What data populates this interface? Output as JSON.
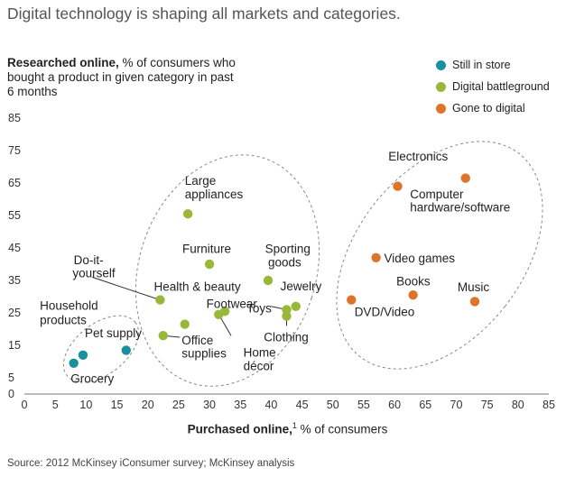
{
  "headline": "Digital technology is shaping all markets and categories.",
  "chart_data": {
    "type": "scatter",
    "title": "Digital technology is shaping all markets and categories.",
    "ylabel_bold": "Researched online,",
    "ylabel_rest": " % of consumers who bought a product in given category in past 6 months",
    "xlabel_bold": "Purchased online,",
    "xlabel_sup": "1",
    "xlabel_rest": " % of consumers",
    "xlim": [
      0,
      85
    ],
    "ylim": [
      0,
      85
    ],
    "xticks": [
      0,
      5,
      10,
      15,
      20,
      25,
      30,
      35,
      40,
      45,
      50,
      55,
      60,
      65,
      70,
      75,
      80,
      85
    ],
    "yticks": [
      0,
      5,
      15,
      25,
      35,
      45,
      55,
      65,
      75,
      85
    ],
    "colors": {
      "Still in store": "#1a8fa0",
      "Digital battleground": "#99b83a",
      "Gone to digital": "#e0732a"
    },
    "series": [
      {
        "name": "Still in store",
        "points": [
          {
            "label": "Household products",
            "x": 9.5,
            "y": 12
          },
          {
            "label": "Grocery",
            "x": 8,
            "y": 9.5
          },
          {
            "label": "Pet supply",
            "x": 16.5,
            "y": 13.5
          }
        ]
      },
      {
        "name": "Digital battleground",
        "points": [
          {
            "label": "Large appliances",
            "x": 26.5,
            "y": 55.5
          },
          {
            "label": "Furniture",
            "x": 30,
            "y": 40
          },
          {
            "label": "Do-it-yourself",
            "x": 22,
            "y": 29
          },
          {
            "label": "Health & beauty",
            "x": 26,
            "y": 21.5
          },
          {
            "label": "Home décor",
            "x": 31.5,
            "y": 24.5
          },
          {
            "label": "Footwear",
            "x": 32.5,
            "y": 25.5
          },
          {
            "label": "Office supplies",
            "x": 22.5,
            "y": 18
          },
          {
            "label": "Sporting goods",
            "x": 39.5,
            "y": 35
          },
          {
            "label": "Jewelry",
            "x": 44,
            "y": 27
          },
          {
            "label": "Toys",
            "x": 42.5,
            "y": 26
          },
          {
            "label": "Clothing",
            "x": 42.5,
            "y": 24
          }
        ]
      },
      {
        "name": "Gone to digital",
        "points": [
          {
            "label": "Electronics",
            "x": 60.5,
            "y": 64
          },
          {
            "label": "Computer hardware/software",
            "x": 71.5,
            "y": 66.5
          },
          {
            "label": "Video games",
            "x": 57,
            "y": 42
          },
          {
            "label": "Books",
            "x": 63,
            "y": 30.5
          },
          {
            "label": "DVD/Video",
            "x": 53,
            "y": 29
          },
          {
            "label": "Music",
            "x": 73,
            "y": 28.5
          }
        ]
      }
    ],
    "annotations": [
      {
        "text": "Household",
        "x": 2.5,
        "y": 26
      },
      {
        "text": "products",
        "x": 2.5,
        "y": 21.5
      },
      {
        "text": "Pet supply",
        "x": 9.8,
        "y": 17.5
      },
      {
        "text": "Grocery",
        "x": 7.5,
        "y": 3.5
      },
      {
        "text": "Large",
        "x": 26,
        "y": 64.5
      },
      {
        "text": "appliances",
        "x": 26,
        "y": 60.3
      },
      {
        "text": "Do-it-",
        "x": 8,
        "y": 40
      },
      {
        "text": "yourself",
        "x": 7.8,
        "y": 36
      },
      {
        "text": "Furniture",
        "x": 25.6,
        "y": 43.5
      },
      {
        "text": "Health & beauty",
        "x": 21,
        "y": 31.8
      },
      {
        "text": "Footwear",
        "x": 29.5,
        "y": 26.5
      },
      {
        "text": "Office",
        "x": 25.5,
        "y": 15.3
      },
      {
        "text": "supplies",
        "x": 25.5,
        "y": 11.2
      },
      {
        "text": "Home",
        "x": 35.5,
        "y": 11.5
      },
      {
        "text": "décor",
        "x": 35.5,
        "y": 7.3
      },
      {
        "text": "Sporting",
        "x": 39,
        "y": 43.5
      },
      {
        "text": "goods",
        "x": 39.5,
        "y": 39.3
      },
      {
        "text": "Jewelry",
        "x": 41.5,
        "y": 32
      },
      {
        "text": "Toys",
        "x": 36,
        "y": 25.2
      },
      {
        "text": "Clothing",
        "x": 38.8,
        "y": 16.2
      },
      {
        "text": "Electronics",
        "x": 59,
        "y": 72
      },
      {
        "text": "Computer",
        "x": 62.5,
        "y": 60.3
      },
      {
        "text": "hardware/software",
        "x": 62.5,
        "y": 56.3
      },
      {
        "text": "Video games",
        "x": 58.3,
        "y": 40.5
      },
      {
        "text": "Books",
        "x": 60.3,
        "y": 33.5
      },
      {
        "text": "DVD/Video",
        "x": 53.5,
        "y": 24
      },
      {
        "text": "Music",
        "x": 70.2,
        "y": 31.7
      }
    ],
    "leaders": [
      {
        "from": [
          11,
          36
        ],
        "to": [
          22,
          29
        ]
      },
      {
        "from": [
          33.5,
          18
        ],
        "to": [
          31.5,
          24.5
        ]
      },
      {
        "from": [
          25.2,
          17.5
        ],
        "to": [
          22.5,
          18
        ]
      },
      {
        "from": [
          40,
          27
        ],
        "to": [
          42.5,
          26
        ]
      },
      {
        "from": [
          42.5,
          21
        ],
        "to": [
          42.5,
          24
        ]
      }
    ],
    "legend_position": "top-right"
  },
  "source": "Source: 2012 McKinsey iConsumer survey; McKinsey analysis"
}
